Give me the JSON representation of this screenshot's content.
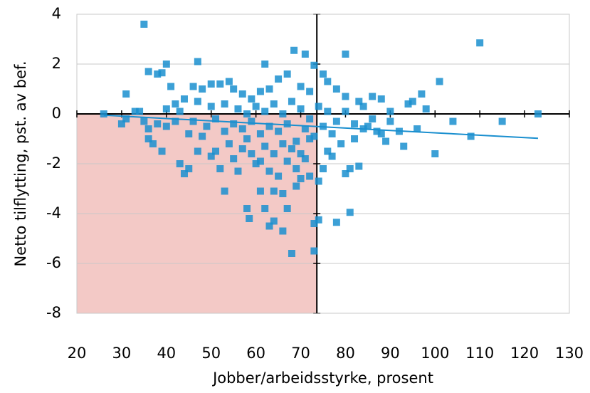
{
  "chart_data": {
    "type": "scatter",
    "x_label": "Jobber/arbeidsstyrke, prosent",
    "y_label": "Netto tilflytting, pst. av bef.",
    "xlim": [
      20,
      130
    ],
    "ylim": [
      -8,
      4
    ],
    "xticks": [
      20,
      30,
      40,
      50,
      60,
      70,
      80,
      90,
      100,
      110,
      120,
      130
    ],
    "yticks": [
      -8,
      -6,
      -4,
      -2,
      0,
      2,
      4
    ],
    "grid": true,
    "axis_cross": {
      "x": 73.6,
      "y": 0
    },
    "shade": {
      "xlim": [
        20,
        73.6
      ],
      "ylim": [
        -8,
        0
      ],
      "color": "#f3c9c6"
    },
    "trendline": {
      "x": [
        26,
        123
      ],
      "y": [
        -0.05,
        -0.98
      ],
      "color": "#1a8fcf"
    },
    "series": [
      {
        "color": "#1a8fcf",
        "x": [
          35,
          110,
          68.5,
          71,
          80,
          47,
          40,
          62,
          73,
          101,
          36,
          38,
          39,
          41,
          97,
          31,
          123,
          26,
          33,
          34,
          115,
          108,
          100,
          96,
          93,
          89,
          83,
          81,
          78,
          74,
          73,
          73,
          68,
          66,
          63,
          64,
          62,
          58,
          58.5,
          61,
          64,
          66,
          67,
          69,
          70,
          72,
          74,
          75,
          80,
          81,
          53,
          56,
          52,
          44,
          43,
          45,
          47,
          39,
          36,
          37,
          30,
          31,
          35,
          36,
          38,
          40,
          42,
          45,
          48,
          50,
          51,
          54,
          57,
          59,
          60,
          61,
          63,
          65,
          67,
          69,
          71,
          72,
          76,
          77,
          79,
          82,
          85,
          87,
          90,
          92,
          94,
          95,
          98,
          104,
          88,
          86,
          84,
          83,
          80,
          78,
          76,
          75,
          72,
          70,
          67,
          65,
          63,
          61,
          59,
          57,
          55,
          54,
          52,
          50,
          48,
          46,
          44,
          42,
          40,
          43,
          47,
          50,
          53,
          56,
          58,
          60,
          62,
          64,
          66,
          68,
          70,
          72,
          74,
          76,
          78,
          80,
          82,
          84,
          86,
          88,
          90,
          46,
          49,
          51,
          53,
          55,
          57,
          59,
          61,
          63,
          65,
          67,
          69,
          71,
          73,
          75,
          77,
          62,
          64,
          66,
          68,
          70,
          58,
          55
        ],
        "values": [
          3.6,
          2.85,
          2.55,
          2.4,
          2.4,
          2.1,
          2.0,
          2.0,
          1.95,
          1.3,
          1.7,
          1.6,
          1.65,
          1.1,
          0.8,
          0.8,
          0,
          0,
          0.1,
          0.1,
          -0.3,
          -0.9,
          -1.6,
          -0.6,
          -1.3,
          -1.1,
          -2.1,
          -3.95,
          -4.35,
          -4.25,
          -4.4,
          -5.5,
          -5.6,
          -4.7,
          -4.5,
          -4.3,
          -3.8,
          -3.8,
          -4.2,
          -3.1,
          -3.1,
          -3.2,
          -3.8,
          -2.9,
          -2.6,
          -2.5,
          -2.7,
          -2.2,
          -2.4,
          -2.2,
          -3.1,
          -2.3,
          -2.2,
          -2.4,
          -2.0,
          -2.2,
          -1.5,
          -1.5,
          -1.0,
          -1.2,
          -0.4,
          -0.2,
          -0.3,
          -0.6,
          -0.4,
          -0.5,
          -0.3,
          -0.8,
          -0.9,
          -1.7,
          -1.5,
          -1.2,
          -1.4,
          -1.6,
          -2.0,
          -1.9,
          -2.3,
          -2.5,
          -1.9,
          -2.2,
          -1.8,
          -1.0,
          -1.5,
          -1.7,
          -1.2,
          -1.0,
          -0.5,
          -0.7,
          -0.3,
          -0.7,
          0.4,
          0.5,
          0.2,
          -0.3,
          0.6,
          0.7,
          0.3,
          0.5,
          0.7,
          1.0,
          1.3,
          1.6,
          0.9,
          1.1,
          1.6,
          1.4,
          1.0,
          0.9,
          0.6,
          0.8,
          1.0,
          1.3,
          1.2,
          1.2,
          1.0,
          1.1,
          0.6,
          0.4,
          0.2,
          0.1,
          0.5,
          0.3,
          0.4,
          0.2,
          0,
          0.3,
          0.1,
          0.4,
          0,
          0.5,
          0.2,
          -0.2,
          0.3,
          0.1,
          -0.3,
          0.1,
          -0.4,
          -0.6,
          -0.2,
          -0.8,
          0.1,
          -0.3,
          -0.5,
          -0.2,
          -0.7,
          -0.4,
          -0.6,
          -0.3,
          -0.8,
          -0.5,
          -0.7,
          -0.4,
          -1.1,
          -0.6,
          -0.9,
          -0.5,
          -0.8,
          -1.3,
          -1.6,
          -1.2,
          -1.4,
          -1.6,
          -1.0,
          -1.8
        ]
      }
    ]
  }
}
